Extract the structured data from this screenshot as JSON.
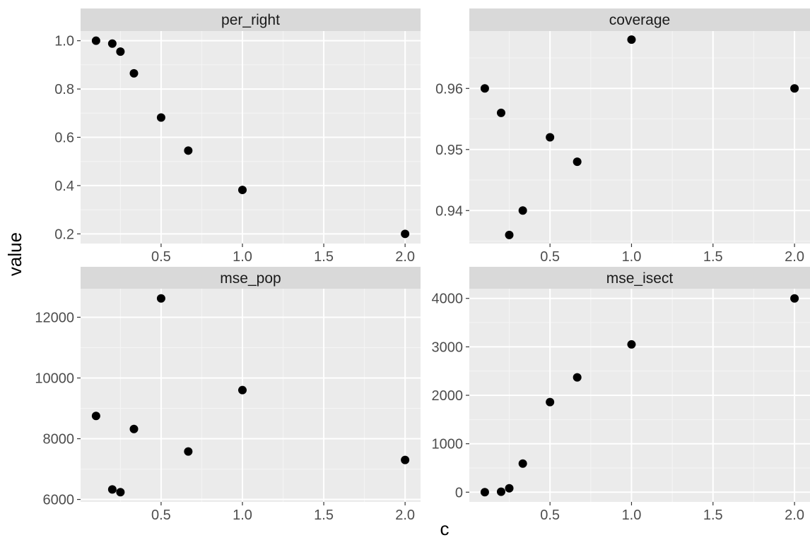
{
  "figure": {
    "xlabel": "c",
    "ylabel": "value"
  },
  "chart_data": [
    {
      "type": "scatter",
      "title": "per_right",
      "x": [
        0.1,
        0.2,
        0.25,
        0.333,
        0.5,
        0.667,
        1.0,
        2.0
      ],
      "y": [
        1.0,
        0.988,
        0.955,
        0.865,
        0.682,
        0.545,
        0.382,
        0.2
      ],
      "xticks": [
        0.5,
        1.0,
        1.5,
        2.0
      ],
      "xtick_labels": [
        "0.5",
        "1.0",
        "1.5",
        "2.0"
      ],
      "yticks": [
        0.2,
        0.4,
        0.6,
        0.8,
        1.0
      ],
      "ytick_labels": [
        "0.2",
        "0.4",
        "0.6",
        "0.8",
        "1.0"
      ],
      "xlim": [
        0.005,
        2.095
      ],
      "ylim": [
        0.16,
        1.04
      ],
      "grid": true
    },
    {
      "type": "scatter",
      "title": "coverage",
      "x": [
        0.1,
        0.2,
        0.25,
        0.333,
        0.5,
        0.667,
        1.0,
        2.0
      ],
      "y": [
        0.96,
        0.956,
        0.936,
        0.94,
        0.952,
        0.948,
        0.968,
        0.96
      ],
      "xticks": [
        0.5,
        1.0,
        1.5,
        2.0
      ],
      "xtick_labels": [
        "0.5",
        "1.0",
        "1.5",
        "2.0"
      ],
      "yticks": [
        0.94,
        0.95,
        0.96
      ],
      "ytick_labels": [
        "0.94",
        "0.95",
        "0.96"
      ],
      "xlim": [
        0.005,
        2.095
      ],
      "ylim": [
        0.9346,
        0.9694
      ],
      "grid": true
    },
    {
      "type": "scatter",
      "title": "mse_pop",
      "x": [
        0.1,
        0.2,
        0.25,
        0.333,
        0.5,
        0.667,
        1.0,
        2.0
      ],
      "y": [
        8750,
        6330,
        6240,
        8320,
        12620,
        7580,
        9600,
        7300
      ],
      "xticks": [
        0.5,
        1.0,
        1.5,
        2.0
      ],
      "xtick_labels": [
        "0.5",
        "1.0",
        "1.5",
        "2.0"
      ],
      "yticks": [
        6000,
        8000,
        10000,
        12000
      ],
      "ytick_labels": [
        "6000",
        "8000",
        "10000",
        "12000"
      ],
      "xlim": [
        0.005,
        2.095
      ],
      "ylim": [
        5920,
        12940
      ],
      "grid": true
    },
    {
      "type": "scatter",
      "title": "mse_isect",
      "x": [
        0.1,
        0.2,
        0.25,
        0.333,
        0.5,
        0.667,
        1.0,
        2.0
      ],
      "y": [
        0,
        10,
        80,
        590,
        1860,
        2370,
        3050,
        4000
      ],
      "xticks": [
        0.5,
        1.0,
        1.5,
        2.0
      ],
      "xtick_labels": [
        "0.5",
        "1.0",
        "1.5",
        "2.0"
      ],
      "yticks": [
        0,
        1000,
        2000,
        3000,
        4000
      ],
      "ytick_labels": [
        "0",
        "1000",
        "2000",
        "3000",
        "4000"
      ],
      "xlim": [
        0.005,
        2.095
      ],
      "ylim": [
        -200,
        4200
      ],
      "grid": true
    }
  ]
}
